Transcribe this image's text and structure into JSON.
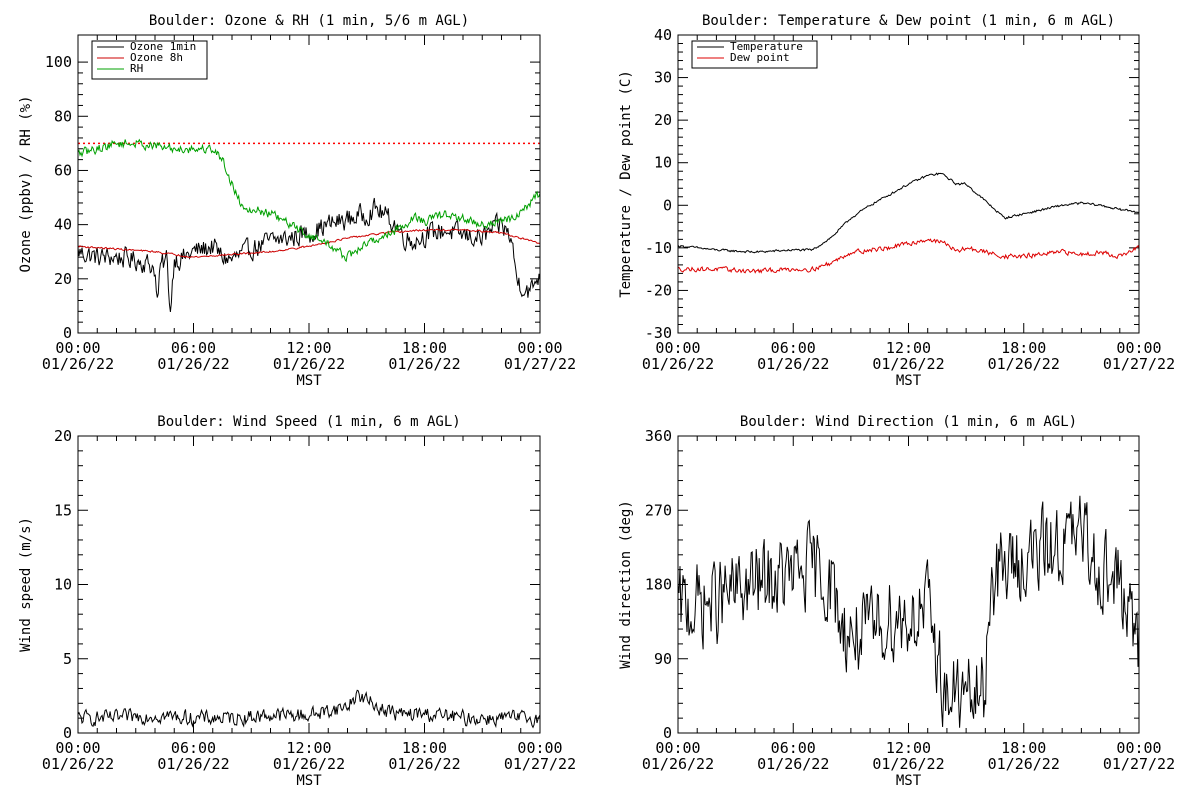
{
  "chart_data": [
    {
      "type": "line",
      "title": "Boulder: Ozone & RH (1 min, 5/6 m AGL)",
      "ylabel": "Ozone (ppbv) / RH (%)",
      "xlabel": "MST",
      "ylim": [
        0,
        110
      ],
      "yticks": [
        0,
        20,
        40,
        60,
        80,
        100
      ],
      "reference_line": {
        "y": 70,
        "color": "#ff0000",
        "style": "dotted"
      },
      "legend": {
        "position": "top-left",
        "entries": [
          "Ozone 1min",
          "Ozone 8h",
          "RH"
        ]
      },
      "series": [
        {
          "name": "Ozone 1min",
          "color": "#000000",
          "x": [
            0,
            1,
            2,
            3,
            3.5,
            3.8,
            4,
            4.1,
            4.3,
            4.5,
            4.6,
            4.8,
            5,
            5.3,
            6,
            7,
            7.5,
            8,
            9,
            10,
            11,
            12,
            13,
            14,
            15,
            15.5,
            16,
            16.5,
            17,
            17.5,
            18,
            19,
            20,
            21,
            21.5,
            22,
            22.5,
            22.8,
            23,
            23.5,
            23.8,
            24
          ],
          "y": [
            30,
            28,
            28,
            27,
            26,
            25,
            24,
            10,
            25,
            26,
            28,
            8,
            28,
            27,
            30,
            32,
            28,
            27,
            31,
            34,
            35,
            37,
            40,
            42,
            44,
            46,
            43,
            40,
            35,
            34,
            36,
            38,
            36,
            35,
            38,
            40,
            35,
            20,
            18,
            15,
            20,
            22
          ],
          "noise": 3.5
        },
        {
          "name": "Ozone 8h",
          "color": "#cc0000",
          "x": [
            0,
            2,
            4,
            6,
            8,
            10,
            12,
            14,
            16,
            18,
            20,
            22,
            23,
            24
          ],
          "y": [
            32,
            31,
            30,
            28,
            29,
            30,
            32,
            35,
            37,
            38,
            38,
            37,
            35,
            33
          ],
          "noise": 0.3
        },
        {
          "name": "RH",
          "color": "#00a000",
          "x": [
            0,
            1,
            2,
            3,
            4,
            5,
            6,
            7,
            7.5,
            8,
            8.5,
            9,
            10,
            11,
            12,
            13,
            13.5,
            14,
            15,
            16,
            17,
            17.5,
            18,
            19,
            20,
            21,
            22,
            23,
            24
          ],
          "y": [
            66,
            68,
            70,
            70,
            69,
            68,
            68,
            68,
            64,
            55,
            47,
            46,
            44,
            40,
            36,
            33,
            30,
            28,
            33,
            36,
            40,
            43,
            41,
            44,
            42,
            40,
            41,
            44,
            52
          ],
          "noise": 1.5
        }
      ]
    },
    {
      "type": "line",
      "title": "Boulder: Temperature & Dew point (1 min, 6 m AGL)",
      "ylabel": "Temperature / Dew point (C)",
      "xlabel": "MST",
      "ylim": [
        -30,
        40
      ],
      "yticks": [
        -30,
        -20,
        -10,
        0,
        10,
        20,
        30,
        40
      ],
      "legend": {
        "position": "top-left",
        "entries": [
          "Temperature",
          "Dew point"
        ]
      },
      "series": [
        {
          "name": "Temperature",
          "color": "#000000",
          "x": [
            0,
            2,
            4,
            6,
            7,
            8,
            9,
            10,
            11,
            12,
            13,
            13.7,
            14.5,
            15,
            16,
            17,
            18,
            19,
            20,
            21,
            22,
            23,
            24
          ],
          "y": [
            -9.5,
            -10.5,
            -11,
            -10.5,
            -10.5,
            -7.5,
            -3,
            0,
            2.5,
            5,
            7,
            7.5,
            5,
            5,
            1,
            -3,
            -2,
            -1,
            0,
            0.5,
            0,
            -1,
            -1.5
          ],
          "noise": 0.25
        },
        {
          "name": "Dew point",
          "color": "#dd0000",
          "x": [
            0,
            2,
            4,
            6,
            7,
            8,
            9,
            10,
            11,
            12,
            13,
            14,
            14.5,
            15,
            16,
            17,
            18,
            19,
            20,
            21,
            22,
            23,
            24
          ],
          "y": [
            -15,
            -15,
            -15.5,
            -15,
            -15,
            -13.5,
            -11,
            -10.5,
            -10,
            -9,
            -8,
            -9,
            -11,
            -10,
            -11,
            -12,
            -12,
            -11.5,
            -11,
            -11.5,
            -11,
            -12,
            -10
          ],
          "noise": 0.5
        }
      ]
    },
    {
      "type": "line",
      "title": "Boulder: Wind Speed (1 min, 6 m AGL)",
      "ylabel": "Wind speed (m/s)",
      "xlabel": "MST",
      "ylim": [
        0,
        20
      ],
      "yticks": [
        0,
        5,
        10,
        15,
        20
      ],
      "series": [
        {
          "color": "#000000",
          "x": [
            0,
            2,
            4,
            6,
            8,
            10,
            12,
            14,
            14.5,
            15,
            16,
            17,
            18,
            20,
            22,
            24
          ],
          "y": [
            1,
            1,
            1.2,
            1,
            1,
            1.2,
            1.2,
            1.8,
            2.6,
            2.2,
            1.5,
            1.2,
            1.3,
            1,
            1,
            1
          ],
          "noise": 0.45
        }
      ]
    },
    {
      "type": "line",
      "title": "Boulder: Wind Direction (1 min, 6 m AGL)",
      "ylabel": "Wind direction (deg)",
      "xlabel": "MST",
      "ylim": [
        0,
        360
      ],
      "yticks": [
        0,
        90,
        180,
        270,
        360
      ],
      "series": [
        {
          "color": "#000000",
          "x": [
            0,
            2,
            4,
            6,
            7,
            8,
            8.5,
            9,
            10,
            11,
            12,
            13,
            14,
            14.5,
            15,
            16,
            16.2,
            17,
            18,
            19,
            20,
            21,
            22,
            23,
            24
          ],
          "y": [
            150,
            160,
            180,
            190,
            200,
            180,
            130,
            120,
            120,
            140,
            140,
            150,
            40,
            50,
            40,
            50,
            180,
            200,
            210,
            220,
            230,
            240,
            200,
            180,
            100
          ],
          "noise": 45
        }
      ]
    }
  ],
  "x_axis": {
    "range_hours": [
      0,
      24
    ],
    "tick_hours": [
      0,
      6,
      12,
      18,
      24
    ],
    "tick_times": [
      "00:00",
      "06:00",
      "12:00",
      "18:00",
      "00:00"
    ],
    "tick_dates": [
      "01/26/22",
      "01/26/22",
      "01/26/22",
      "01/26/22",
      "01/27/22"
    ]
  }
}
